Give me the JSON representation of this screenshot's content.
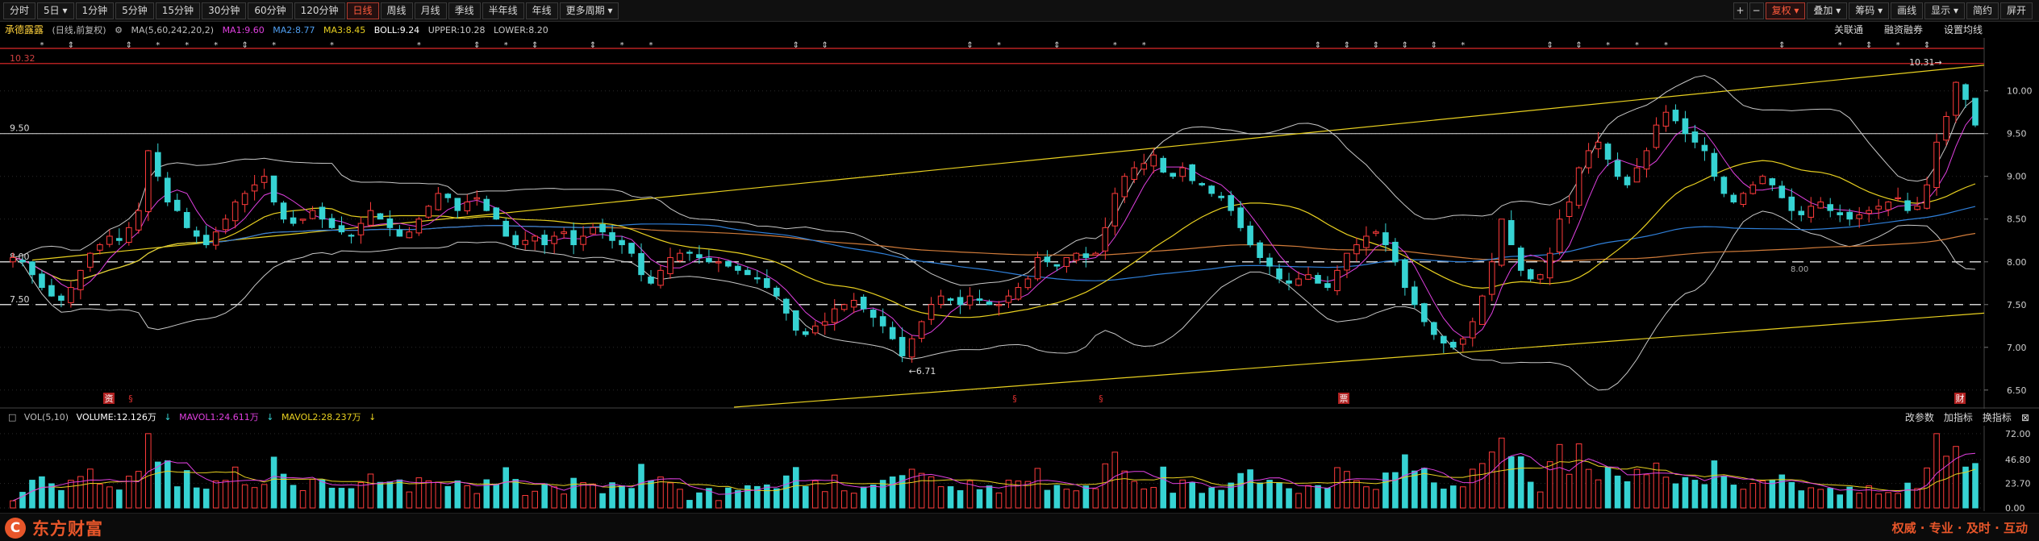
{
  "toolbar": {
    "tabs": [
      "分时",
      "5日",
      "1分钟",
      "5分钟",
      "15分钟",
      "30分钟",
      "60分钟",
      "120分钟",
      "日线",
      "周线",
      "月线",
      "季线",
      "半年线",
      "年线",
      "更多周期"
    ],
    "active_tab": "日线",
    "right_buttons": [
      "+",
      "−",
      "复权",
      "叠加",
      "筹码",
      "画线",
      "显示",
      "简约",
      "屏开"
    ],
    "active_right": "复权"
  },
  "info": {
    "stock_name": "承德露露",
    "mode": "(日线,前复权)",
    "ma_params": "MA(5,60,242,20,2)",
    "ma1": "MA1:9.60",
    "ma2": "MA2:8.77",
    "ma3": "MA3:8.45",
    "boll": "BOLL:9.24",
    "upper": "UPPER:10.28",
    "lower": "LOWER:8.20",
    "right_links": [
      "关联通",
      "融资融券",
      "设置均线"
    ]
  },
  "colors": {
    "up": "#ff3b3b",
    "down": "#36d3d3",
    "ma1": "#ffffff",
    "ma2": "#e8d020",
    "ma3": "#e040e0",
    "ma_long": "#2f7fd8",
    "ma_longer": "#d07b3a",
    "boll": "#c8c8c8",
    "channel": "#e8d020",
    "accent": "#e8562a"
  },
  "price_axis": {
    "ticks": [
      "10.00",
      "9.50",
      "9.00",
      "8.50",
      "8.00",
      "7.50",
      "7.00",
      "6.50"
    ]
  },
  "left_labels": [
    "10.32",
    "9.50",
    "8.00",
    "7.50"
  ],
  "annotations": {
    "low": "6.71",
    "high": "10.31",
    "mid_label": "8.00"
  },
  "event_markers": [
    "资",
    "§",
    "§",
    "§",
    "票",
    "财"
  ],
  "volume": {
    "label": "VOL(5,10)",
    "volume": "VOLUME:12.126万",
    "mavol1": "MAVOL1:24.611万",
    "mavol2": "MAVOL2:28.237万",
    "ticks": [
      "72.00",
      "46.80",
      "23.70",
      "0.00"
    ],
    "right_links": [
      "改参数",
      "加指标",
      "换指标"
    ]
  },
  "footer": {
    "brand": "东方财富",
    "slogan": "权威 · 专业 · 及时 · 互动"
  },
  "chart_data": {
    "type": "candlestick",
    "series_note": "",
    "ylim": [
      6.3,
      10.45
    ],
    "y_ticks": [
      6.5,
      7.0,
      7.5,
      8.0,
      8.5,
      9.0,
      9.5,
      10.0
    ],
    "volume_ylim": [
      0,
      75
    ],
    "volume_ticks": [
      0,
      23.7,
      46.8,
      72.0
    ],
    "close": [
      8.05,
      8.0,
      7.85,
      7.7,
      7.6,
      7.55,
      7.7,
      7.9,
      8.1,
      8.2,
      8.3,
      8.25,
      8.4,
      8.6,
      9.3,
      9.0,
      8.7,
      8.6,
      8.4,
      8.3,
      8.2,
      8.35,
      8.5,
      8.7,
      8.8,
      8.9,
      9.0,
      8.7,
      8.5,
      8.45,
      8.5,
      8.6,
      8.5,
      8.4,
      8.35,
      8.3,
      8.45,
      8.6,
      8.5,
      8.4,
      8.3,
      8.35,
      8.5,
      8.65,
      8.8,
      8.75,
      8.6,
      8.7,
      8.75,
      8.6,
      8.5,
      8.3,
      8.2,
      8.25,
      8.3,
      8.2,
      8.3,
      8.35,
      8.2,
      8.3,
      8.4,
      8.35,
      8.25,
      8.2,
      8.1,
      7.85,
      7.75,
      7.9,
      8.05,
      8.1,
      8.1,
      8.05,
      8.0,
      8.0,
      7.95,
      7.9,
      7.85,
      7.8,
      7.7,
      7.6,
      7.4,
      7.2,
      7.15,
      7.25,
      7.3,
      7.45,
      7.5,
      7.55,
      7.45,
      7.35,
      7.25,
      7.1,
      6.9,
      7.1,
      7.3,
      7.5,
      7.6,
      7.55,
      7.5,
      7.6,
      7.55,
      7.5,
      7.5,
      7.6,
      7.7,
      7.8,
      8.05,
      8.0,
      7.95,
      8.05,
      8.1,
      8.05,
      8.1,
      8.4,
      8.8,
      9.0,
      9.1,
      9.15,
      9.25,
      9.05,
      9.0,
      9.1,
      8.95,
      8.9,
      8.8,
      8.75,
      8.6,
      8.4,
      8.2,
      8.05,
      7.95,
      7.8,
      7.75,
      7.8,
      7.85,
      7.75,
      7.7,
      7.9,
      8.1,
      8.2,
      8.3,
      8.35,
      8.2,
      8.0,
      7.7,
      7.5,
      7.3,
      7.15,
      7.05,
      7.0,
      7.1,
      7.3,
      7.6,
      8.0,
      8.5,
      8.2,
      7.9,
      7.8,
      7.85,
      8.1,
      8.5,
      8.7,
      9.1,
      9.3,
      9.4,
      9.2,
      9.0,
      8.9,
      9.1,
      9.3,
      9.6,
      9.75,
      9.65,
      9.5,
      9.4,
      9.3,
      9.0,
      8.8,
      8.7,
      8.8,
      8.9,
      9.0,
      8.9,
      8.75,
      8.6,
      8.55,
      8.65,
      8.7,
      8.6,
      8.55,
      8.5,
      8.55,
      8.6,
      8.65,
      8.7,
      8.75,
      8.6,
      8.65,
      8.9,
      9.4,
      9.7,
      10.1,
      9.9,
      9.6
    ]
  }
}
